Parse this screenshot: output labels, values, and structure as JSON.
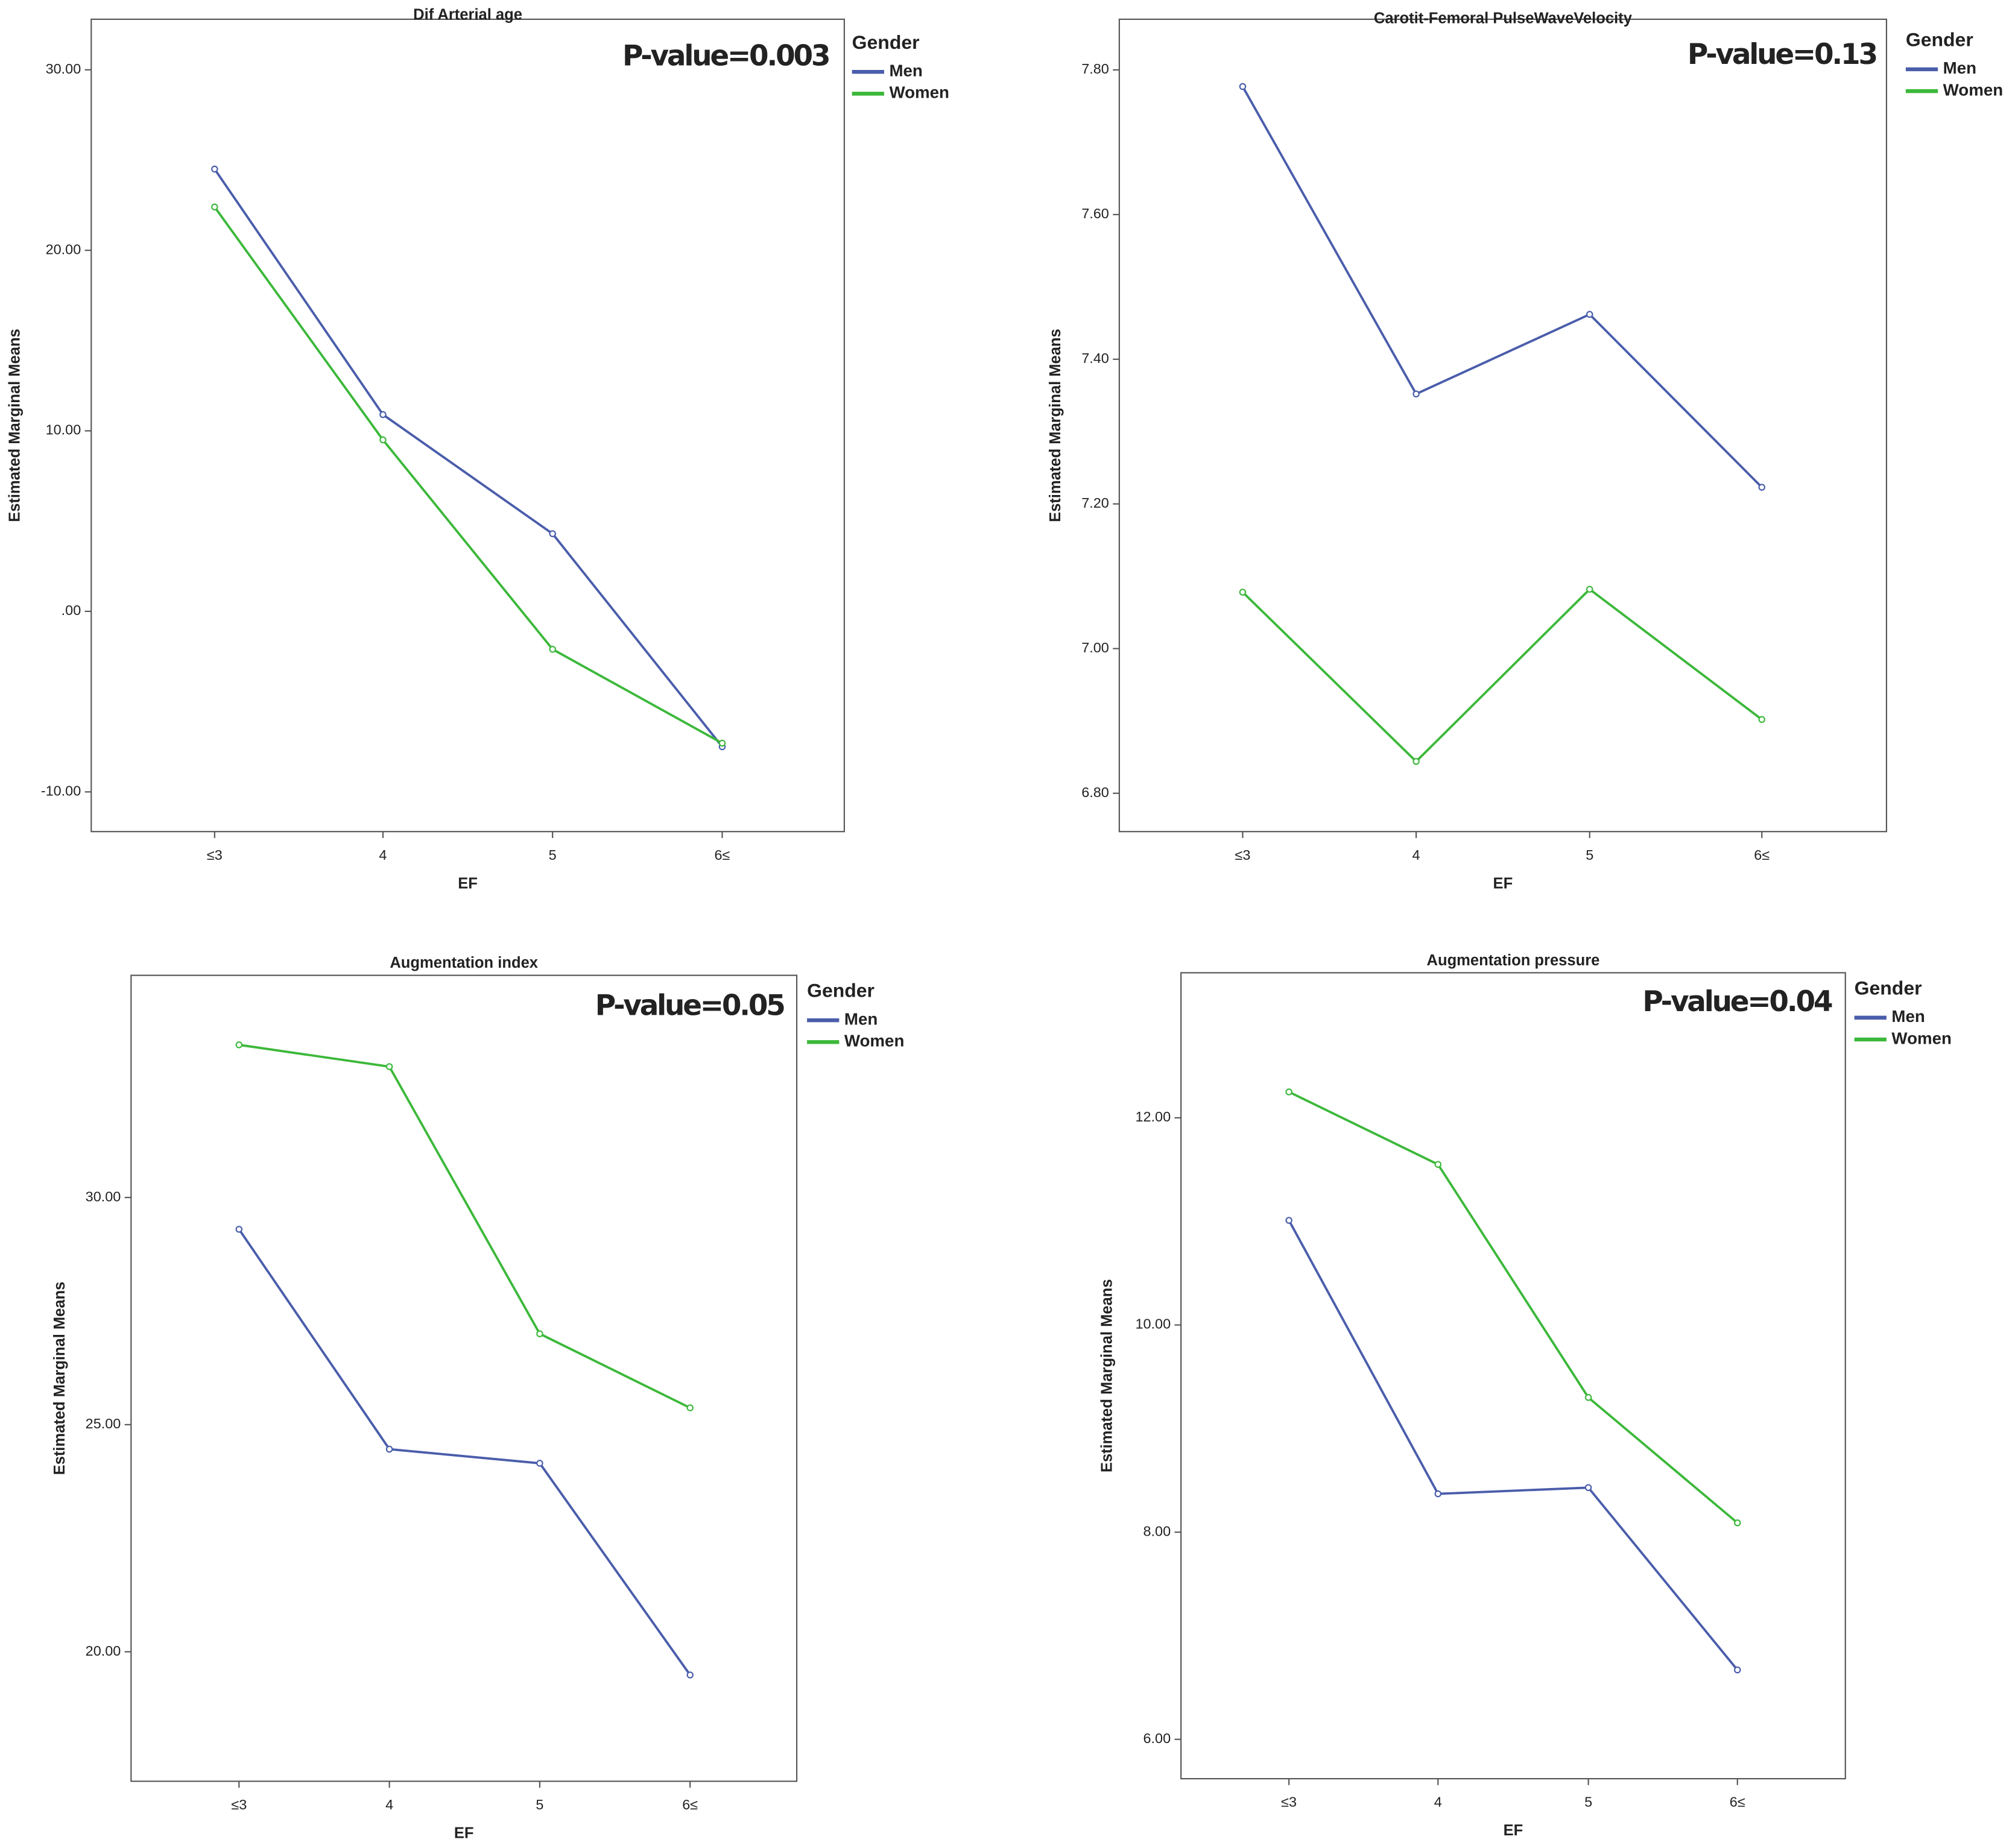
{
  "chart_data": [
    {
      "type": "line",
      "title": "Dif Arterial age",
      "x_label": "EF",
      "y_label": "Estimated Marginal Means",
      "annotation": "P-value=0.003",
      "legend_title": "Gender",
      "categories": [
        "≤3",
        "4",
        "5",
        "6≤"
      ],
      "series": [
        {
          "name": "Men",
          "color": "#4a5dab",
          "values": [
            24.5,
            10.9,
            4.3,
            -7.5
          ]
        },
        {
          "name": "Women",
          "color": "#3cb83a",
          "values": [
            22.4,
            9.5,
            -2.1,
            -7.3
          ]
        }
      ],
      "ylim": [
        -12.2,
        32.8
      ],
      "yticks": [
        {
          "value": 30,
          "label": "30.00"
        },
        {
          "value": 20,
          "label": "20.00"
        },
        {
          "value": 10,
          "label": "10.00"
        },
        {
          "value": 0,
          "label": ".00"
        },
        {
          "value": -10,
          "label": "-10.00"
        }
      ]
    },
    {
      "type": "line",
      "title": "Carotit-Femoral PulseWaveVelocity",
      "x_label": "EF",
      "y_label": "Estimated Marginal Means",
      "annotation": "P-value=0.13",
      "legend_title": "Gender",
      "categories": [
        "≤3",
        "4",
        "5",
        "6≤"
      ],
      "series": [
        {
          "name": "Men",
          "color": "#4a5dab",
          "values": [
            7.777,
            7.352,
            7.462,
            7.223
          ]
        },
        {
          "name": "Women",
          "color": "#3cb83a",
          "values": [
            7.078,
            6.844,
            7.082,
            6.902
          ]
        }
      ],
      "ylim": [
        6.747,
        7.87
      ],
      "yticks": [
        {
          "value": 7.8,
          "label": "7.80"
        },
        {
          "value": 7.6,
          "label": "7.60"
        },
        {
          "value": 7.4,
          "label": "7.40"
        },
        {
          "value": 7.2,
          "label": "7.20"
        },
        {
          "value": 7,
          "label": "7.00"
        },
        {
          "value": 6.8,
          "label": "6.80"
        }
      ]
    },
    {
      "type": "line",
      "title": "Augmentation index",
      "x_label": "EF",
      "y_label": "Estimated Marginal Means",
      "annotation": "P-value=0.05",
      "legend_title": "Gender",
      "categories": [
        "≤3",
        "4",
        "5",
        "6≤"
      ],
      "series": [
        {
          "name": "Men",
          "color": "#4a5dab",
          "values": [
            29.3,
            24.46,
            24.15,
            19.49
          ]
        },
        {
          "name": "Women",
          "color": "#3cb83a",
          "values": [
            33.36,
            32.88,
            27.0,
            25.37
          ]
        }
      ],
      "ylim": [
        17.15,
        34.89
      ],
      "yticks": [
        {
          "value": 30,
          "label": "30.00"
        },
        {
          "value": 25,
          "label": "25.00"
        },
        {
          "value": 20,
          "label": "20.00"
        }
      ]
    },
    {
      "type": "line",
      "title": "Augmentation pressure",
      "x_label": "EF",
      "y_label": "Estimated Marginal Means",
      "annotation": "P-value=0.04",
      "legend_title": "Gender",
      "categories": [
        "≤3",
        "4",
        "5",
        "6≤"
      ],
      "series": [
        {
          "name": "Men",
          "color": "#4a5dab",
          "values": [
            11.01,
            8.37,
            8.43,
            6.67
          ]
        },
        {
          "name": "Women",
          "color": "#3cb83a",
          "values": [
            12.25,
            11.55,
            9.3,
            8.09
          ]
        }
      ],
      "ylim": [
        5.62,
        13.4
      ],
      "yticks": [
        {
          "value": 12,
          "label": "12.00"
        },
        {
          "value": 10,
          "label": "10.00"
        },
        {
          "value": 8,
          "label": "8.00"
        },
        {
          "value": 6,
          "label": "6.00"
        }
      ]
    }
  ]
}
